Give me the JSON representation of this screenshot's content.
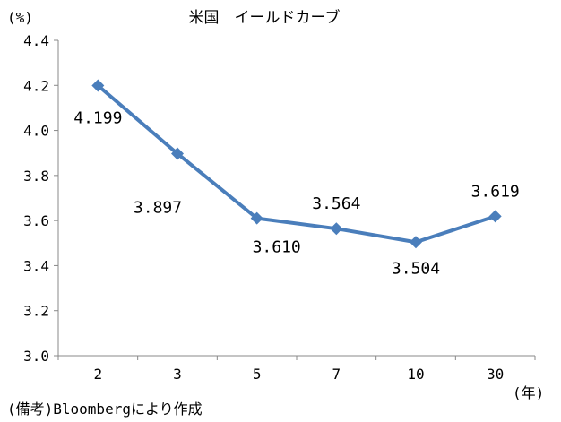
{
  "chart_data": {
    "type": "line",
    "title": "米国　イールドカーブ",
    "y_unit_label": "(%)",
    "x_unit_label": "(年)",
    "categories": [
      "2",
      "3",
      "5",
      "7",
      "10",
      "30"
    ],
    "series": [
      {
        "values": [
          4.199,
          3.897,
          3.61,
          3.564,
          3.504,
          3.619
        ],
        "data_labels": [
          "4.199",
          "3.897",
          "3.610",
          "3.564",
          "3.504",
          "3.619"
        ],
        "color": "#4A7EBB"
      }
    ],
    "ylim": [
      3.0,
      4.4
    ],
    "y_ticks": [
      "3.0",
      "3.2",
      "3.4",
      "3.6",
      "3.8",
      "4.0",
      "4.2",
      "4.4"
    ],
    "grid": false,
    "legend": "none"
  },
  "source_note": "(備考)Bloombergにより作成"
}
